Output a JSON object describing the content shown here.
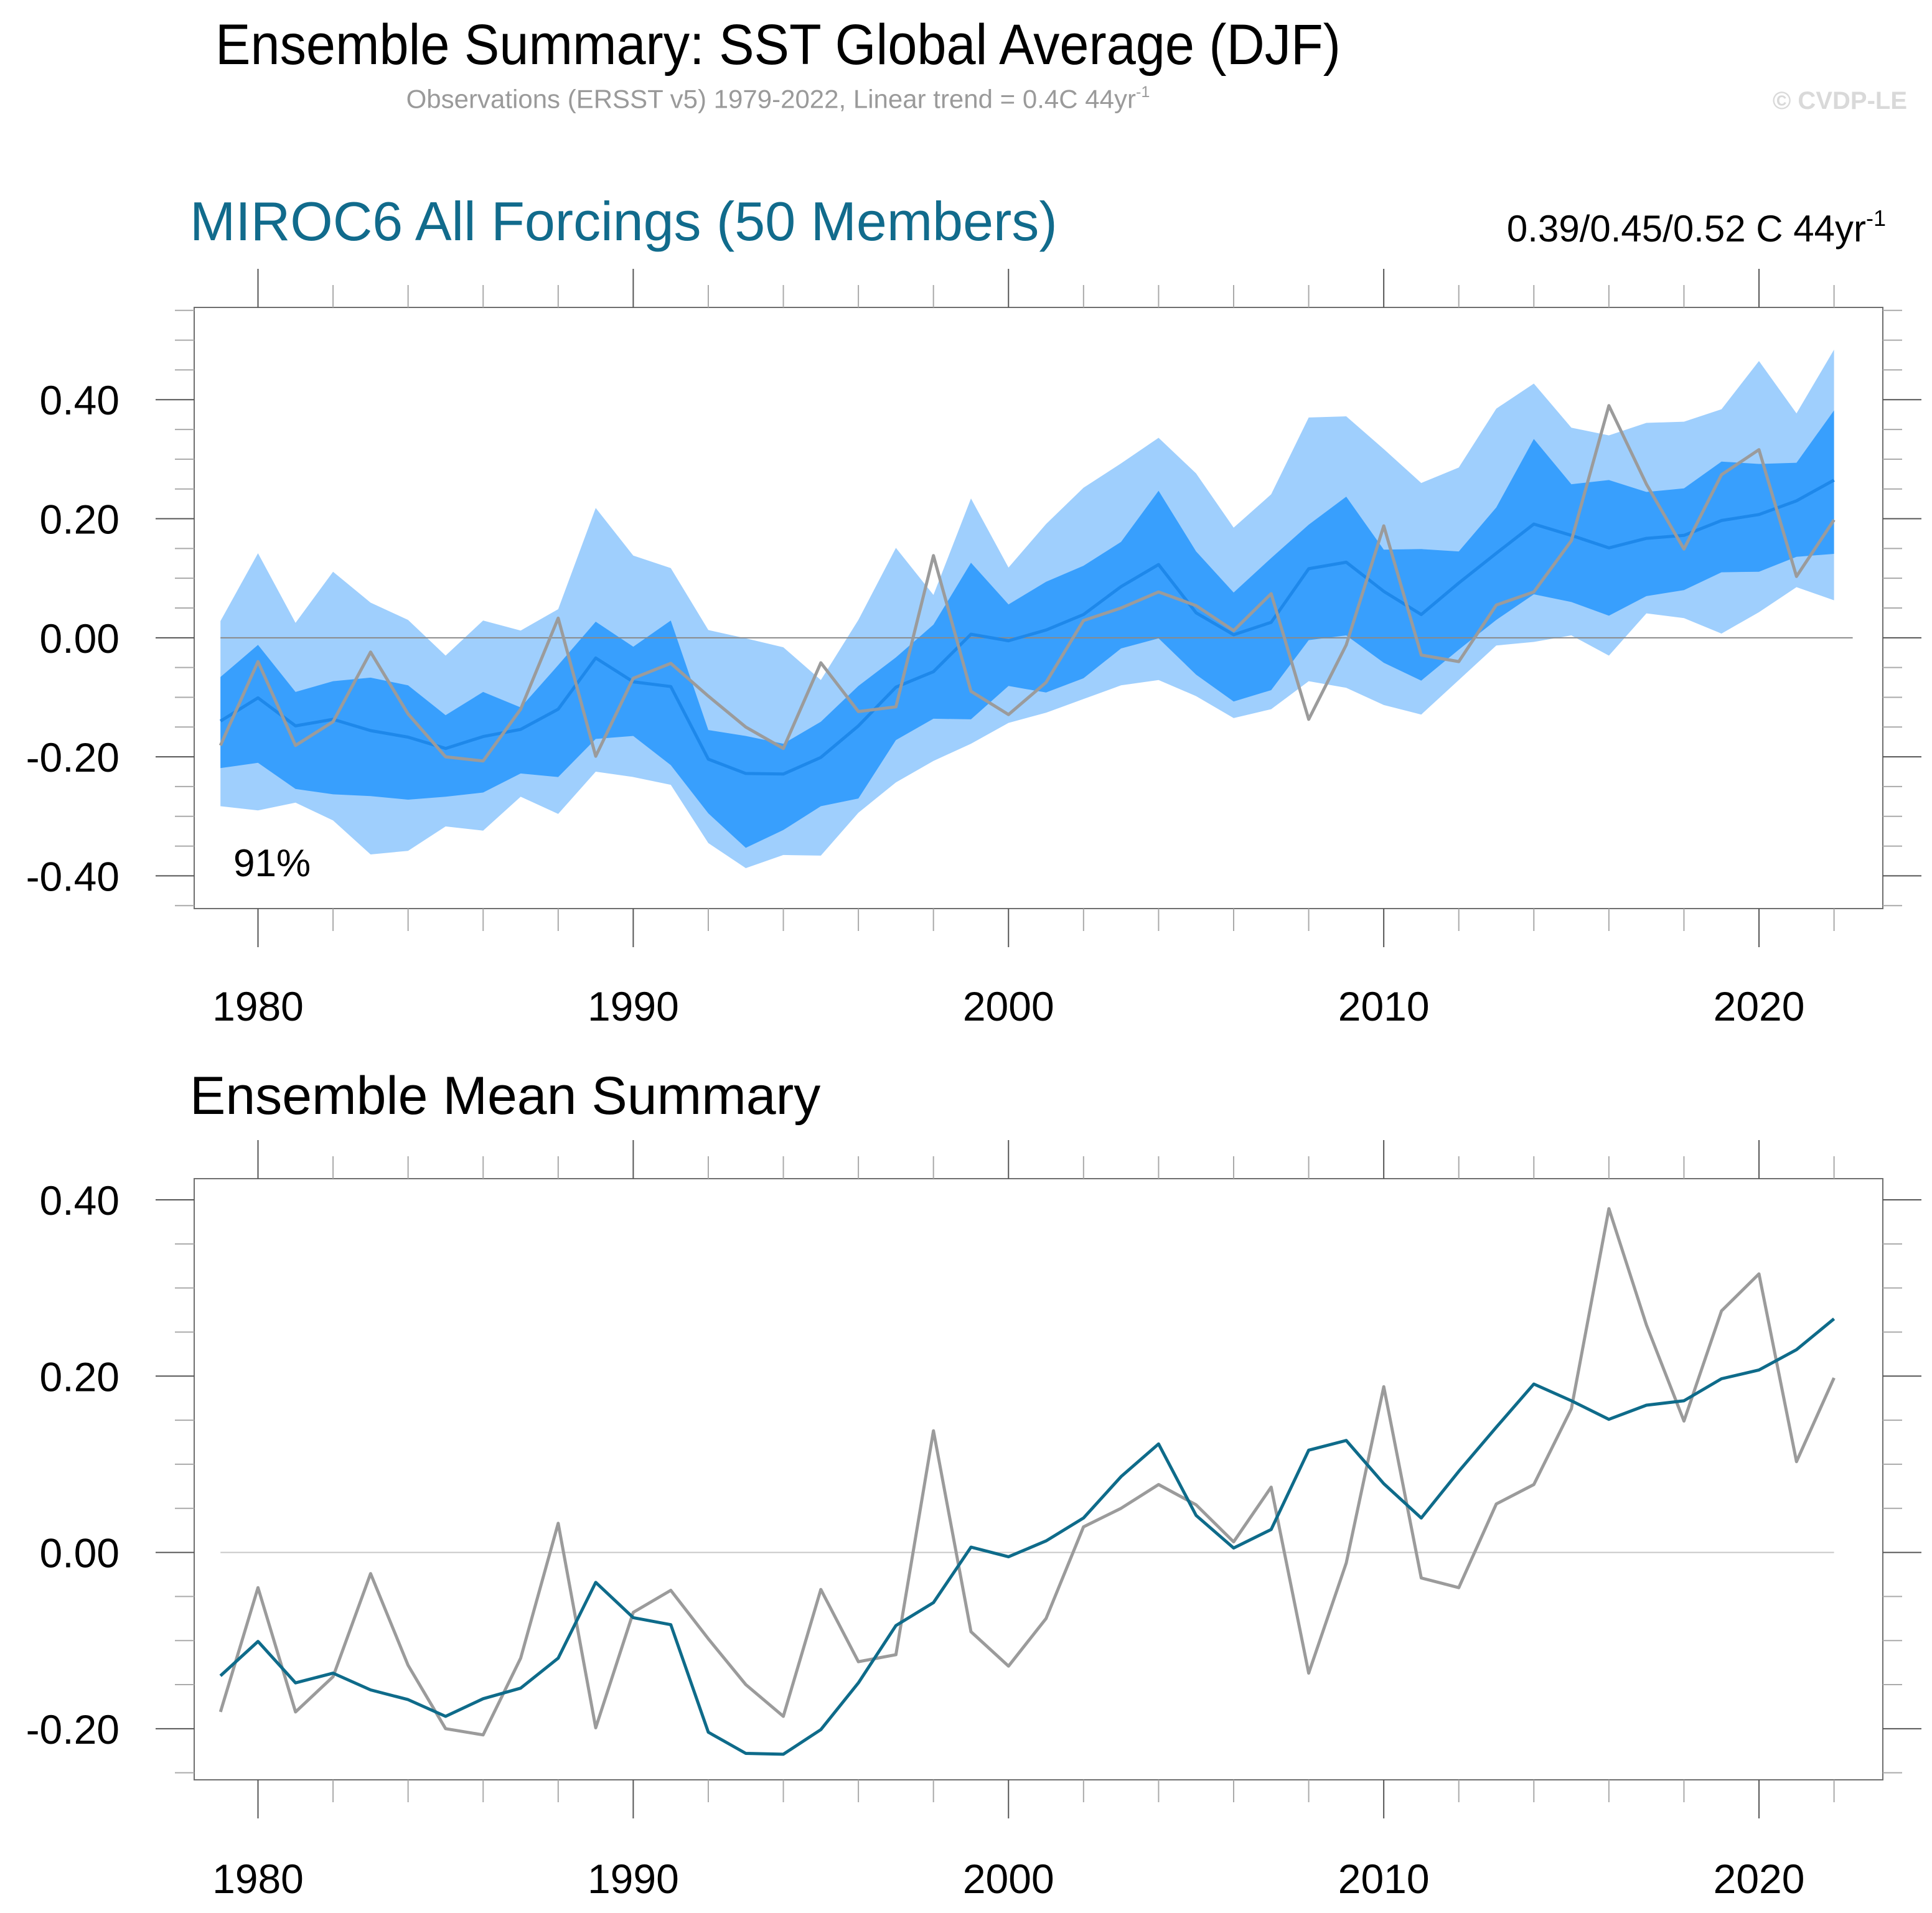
{
  "header": {
    "title": "Ensemble Summary: SST Global Average (DJF)",
    "subtitle_text": "Observations (ERSST v5) 1979-2022, Linear trend = 0.4C 44yr",
    "subtitle_sup": "-1",
    "watermark": "© CVDP-LE"
  },
  "colors": {
    "outer_band": "#9fcffd",
    "inner_band": "#389ffd",
    "ensemble_mean_top": "#1e88ea",
    "ensemble_mean_bottom": "#0e6b8a",
    "observations": "#9b9b9b",
    "panel_title": "#116b8c"
  },
  "chart_data": [
    {
      "type": "area",
      "title": "MIROC6 All Forcings (50 Members)",
      "trend_annotation": "0.39/0.45/0.52 C 44yr",
      "trend_annotation_sup": "-1",
      "inset_label": "91%",
      "xlabel": "",
      "ylabel": "",
      "xlim": [
        1978.3,
        2023.3
      ],
      "ylim": [
        -0.455,
        0.555
      ],
      "yticks": [
        -0.4,
        -0.2,
        0.0,
        0.2,
        0.4
      ],
      "ytick_labels": [
        "-0.40",
        "-0.20",
        "0.00",
        "0.20",
        "0.40"
      ],
      "xticks": [
        1980,
        1990,
        2000,
        2010,
        2020
      ],
      "xtick_labels": [
        "1980",
        "1990",
        "2000",
        "2010",
        "2020"
      ],
      "zero_line": true,
      "x": [
        1979,
        1980,
        1981,
        1982,
        1983,
        1984,
        1985,
        1986,
        1987,
        1988,
        1989,
        1990,
        1991,
        1992,
        1993,
        1994,
        1995,
        1996,
        1997,
        1998,
        1999,
        2000,
        2001,
        2002,
        2003,
        2004,
        2005,
        2006,
        2007,
        2008,
        2009,
        2010,
        2011,
        2012,
        2013,
        2014,
        2015,
        2016,
        2017,
        2018,
        2019,
        2020,
        2021,
        2022
      ],
      "series": [
        {
          "name": "Ensemble range (outer) upper",
          "values": [
            0.028,
            0.142,
            0.025,
            0.111,
            0.059,
            0.03,
            -0.03,
            0.029,
            0.012,
            0.048,
            0.218,
            0.138,
            0.117,
            0.013,
            -0.001,
            -0.016,
            -0.071,
            0.03,
            0.151,
            0.072,
            0.234,
            0.118,
            0.191,
            0.252,
            0.293,
            0.336,
            0.276,
            0.185,
            0.241,
            0.37,
            0.372,
            0.317,
            0.26,
            0.286,
            0.385,
            0.427,
            0.353,
            0.34,
            0.361,
            0.363,
            0.384,
            0.465,
            0.377,
            0.484
          ]
        },
        {
          "name": "Ensemble range (outer) lower",
          "values": [
            -0.283,
            -0.29,
            -0.277,
            -0.307,
            -0.364,
            -0.358,
            -0.317,
            -0.324,
            -0.267,
            -0.296,
            -0.225,
            -0.234,
            -0.247,
            -0.345,
            -0.387,
            -0.365,
            -0.366,
            -0.294,
            -0.243,
            -0.207,
            -0.178,
            -0.143,
            -0.126,
            -0.103,
            -0.08,
            -0.071,
            -0.098,
            -0.135,
            -0.12,
            -0.073,
            -0.084,
            -0.113,
            -0.129,
            -0.071,
            -0.013,
            -0.007,
            0.004,
            -0.03,
            0.041,
            0.033,
            0.007,
            0.043,
            0.085,
            0.063
          ]
        },
        {
          "name": "Ensemble range (inner) upper",
          "values": [
            -0.066,
            -0.012,
            -0.091,
            -0.073,
            -0.067,
            -0.08,
            -0.13,
            -0.091,
            -0.117,
            -0.046,
            0.027,
            -0.015,
            0.029,
            -0.155,
            -0.165,
            -0.178,
            -0.141,
            -0.081,
            -0.033,
            0.022,
            0.126,
            0.056,
            0.094,
            0.121,
            0.161,
            0.247,
            0.145,
            0.076,
            0.134,
            0.19,
            0.237,
            0.148,
            0.149,
            0.145,
            0.219,
            0.334,
            0.258,
            0.265,
            0.245,
            0.251,
            0.296,
            0.292,
            0.294,
            0.382
          ]
        },
        {
          "name": "Ensemble range (inner) lower",
          "values": [
            -0.219,
            -0.21,
            -0.254,
            -0.263,
            -0.266,
            -0.272,
            -0.267,
            -0.26,
            -0.228,
            -0.234,
            -0.17,
            -0.165,
            -0.214,
            -0.295,
            -0.353,
            -0.323,
            -0.283,
            -0.27,
            -0.172,
            -0.136,
            -0.137,
            -0.081,
            -0.092,
            -0.068,
            -0.018,
            -0.001,
            -0.062,
            -0.107,
            -0.088,
            -0.004,
            0.004,
            -0.042,
            -0.072,
            -0.02,
            0.03,
            0.073,
            0.06,
            0.037,
            0.07,
            0.08,
            0.11,
            0.111,
            0.136,
            0.141
          ]
        },
        {
          "name": "Ensemble mean",
          "values": [
            -0.14,
            -0.101,
            -0.148,
            -0.137,
            -0.156,
            -0.167,
            -0.186,
            -0.166,
            -0.154,
            -0.12,
            -0.034,
            -0.074,
            -0.082,
            -0.204,
            -0.228,
            -0.229,
            -0.201,
            -0.148,
            -0.083,
            -0.057,
            0.006,
            -0.005,
            0.013,
            0.039,
            0.086,
            0.123,
            0.042,
            0.005,
            0.026,
            0.116,
            0.127,
            0.078,
            0.039,
            0.092,
            0.142,
            0.191,
            0.172,
            0.151,
            0.167,
            0.172,
            0.197,
            0.207,
            0.23,
            0.265
          ]
        },
        {
          "name": "Observations (ERSST v5)",
          "values": [
            -0.181,
            -0.04,
            -0.181,
            -0.141,
            -0.024,
            -0.128,
            -0.2,
            -0.207,
            -0.12,
            0.033,
            -0.199,
            -0.068,
            -0.043,
            -0.098,
            -0.15,
            -0.186,
            -0.042,
            -0.124,
            -0.116,
            0.138,
            -0.09,
            -0.129,
            -0.075,
            0.029,
            0.05,
            0.077,
            0.054,
            0.012,
            0.074,
            -0.137,
            -0.012,
            0.188,
            -0.029,
            -0.04,
            0.055,
            0.077,
            0.163,
            0.39,
            0.258,
            0.149,
            0.274,
            0.316,
            0.103,
            0.198
          ]
        }
      ]
    },
    {
      "type": "line",
      "title": "Ensemble Mean Summary",
      "xlabel": "",
      "ylabel": "",
      "xlim": [
        1978.3,
        2023.3
      ],
      "ylim": [
        -0.258,
        0.424
      ],
      "yticks": [
        -0.2,
        0.0,
        0.2,
        0.4
      ],
      "ytick_labels": [
        "-0.20",
        "0.00",
        "0.20",
        "0.40"
      ],
      "xticks": [
        1980,
        1990,
        2000,
        2010,
        2020
      ],
      "xtick_labels": [
        "1980",
        "1990",
        "2000",
        "2010",
        "2020"
      ],
      "zero_line": true,
      "x": [
        1979,
        1980,
        1981,
        1982,
        1983,
        1984,
        1985,
        1986,
        1987,
        1988,
        1989,
        1990,
        1991,
        1992,
        1993,
        1994,
        1995,
        1996,
        1997,
        1998,
        1999,
        2000,
        2001,
        2002,
        2003,
        2004,
        2005,
        2006,
        2007,
        2008,
        2009,
        2010,
        2011,
        2012,
        2013,
        2014,
        2015,
        2016,
        2017,
        2018,
        2019,
        2020,
        2021,
        2022
      ],
      "series": [
        {
          "name": "Ensemble mean",
          "values": [
            -0.14,
            -0.101,
            -0.148,
            -0.137,
            -0.156,
            -0.167,
            -0.186,
            -0.166,
            -0.154,
            -0.12,
            -0.034,
            -0.074,
            -0.082,
            -0.204,
            -0.228,
            -0.229,
            -0.201,
            -0.148,
            -0.083,
            -0.057,
            0.006,
            -0.005,
            0.013,
            0.039,
            0.086,
            0.123,
            0.042,
            0.005,
            0.026,
            0.116,
            0.127,
            0.078,
            0.039,
            0.092,
            0.142,
            0.191,
            0.172,
            0.151,
            0.167,
            0.172,
            0.197,
            0.207,
            0.23,
            0.265
          ]
        },
        {
          "name": "Observations (ERSST v5)",
          "values": [
            -0.181,
            -0.04,
            -0.181,
            -0.141,
            -0.024,
            -0.128,
            -0.2,
            -0.207,
            -0.12,
            0.033,
            -0.199,
            -0.068,
            -0.043,
            -0.098,
            -0.15,
            -0.186,
            -0.042,
            -0.124,
            -0.116,
            0.138,
            -0.09,
            -0.129,
            -0.075,
            0.029,
            0.05,
            0.077,
            0.054,
            0.012,
            0.074,
            -0.137,
            -0.012,
            0.188,
            -0.029,
            -0.04,
            0.055,
            0.077,
            0.163,
            0.39,
            0.258,
            0.149,
            0.274,
            0.316,
            0.103,
            0.198
          ]
        }
      ]
    }
  ]
}
